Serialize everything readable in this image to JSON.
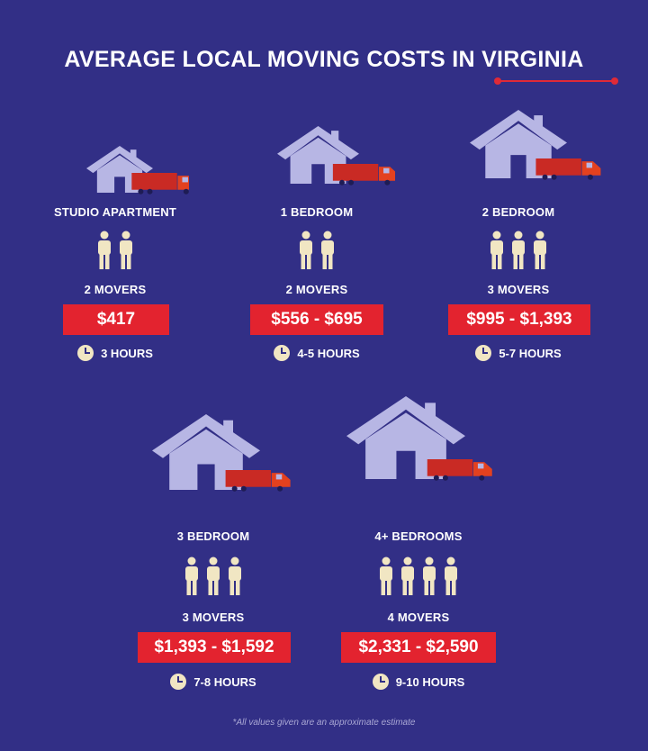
{
  "header": {
    "title": "AVERAGE LOCAL MOVING COSTS IN VIRGINIA"
  },
  "colors": {
    "background": "#322f86",
    "house": "#b7b6e4",
    "truck_cab": "#e3411f",
    "truck_box": "#c92a24",
    "price_bg": "#e3232f",
    "person": "#f1e6c3"
  },
  "cards": [
    {
      "label": "STUDIO APARTMENT",
      "movers_count": 2,
      "movers": "2 MOVERS",
      "price": "$417",
      "hours": "3 HOURS"
    },
    {
      "label": "1  BEDROOM",
      "movers_count": 2,
      "movers": "2 MOVERS",
      "price": "$556 - $695",
      "hours": "4-5 HOURS"
    },
    {
      "label": "2 BEDROOM",
      "movers_count": 3,
      "movers": "3 MOVERS",
      "price": "$995 - $1,393",
      "hours": "5-7 HOURS"
    },
    {
      "label": "3 BEDROOM",
      "movers_count": 3,
      "movers": "3 MOVERS",
      "price": "$1,393 - $1,592",
      "hours": "7-8 HOURS"
    },
    {
      "label": "4+ BEDROOMS",
      "movers_count": 4,
      "movers": "4 MOVERS",
      "price": "$2,331 - $2,590",
      "hours": "9-10 HOURS"
    }
  ],
  "footnote": "*All values given are an approximate estimate"
}
